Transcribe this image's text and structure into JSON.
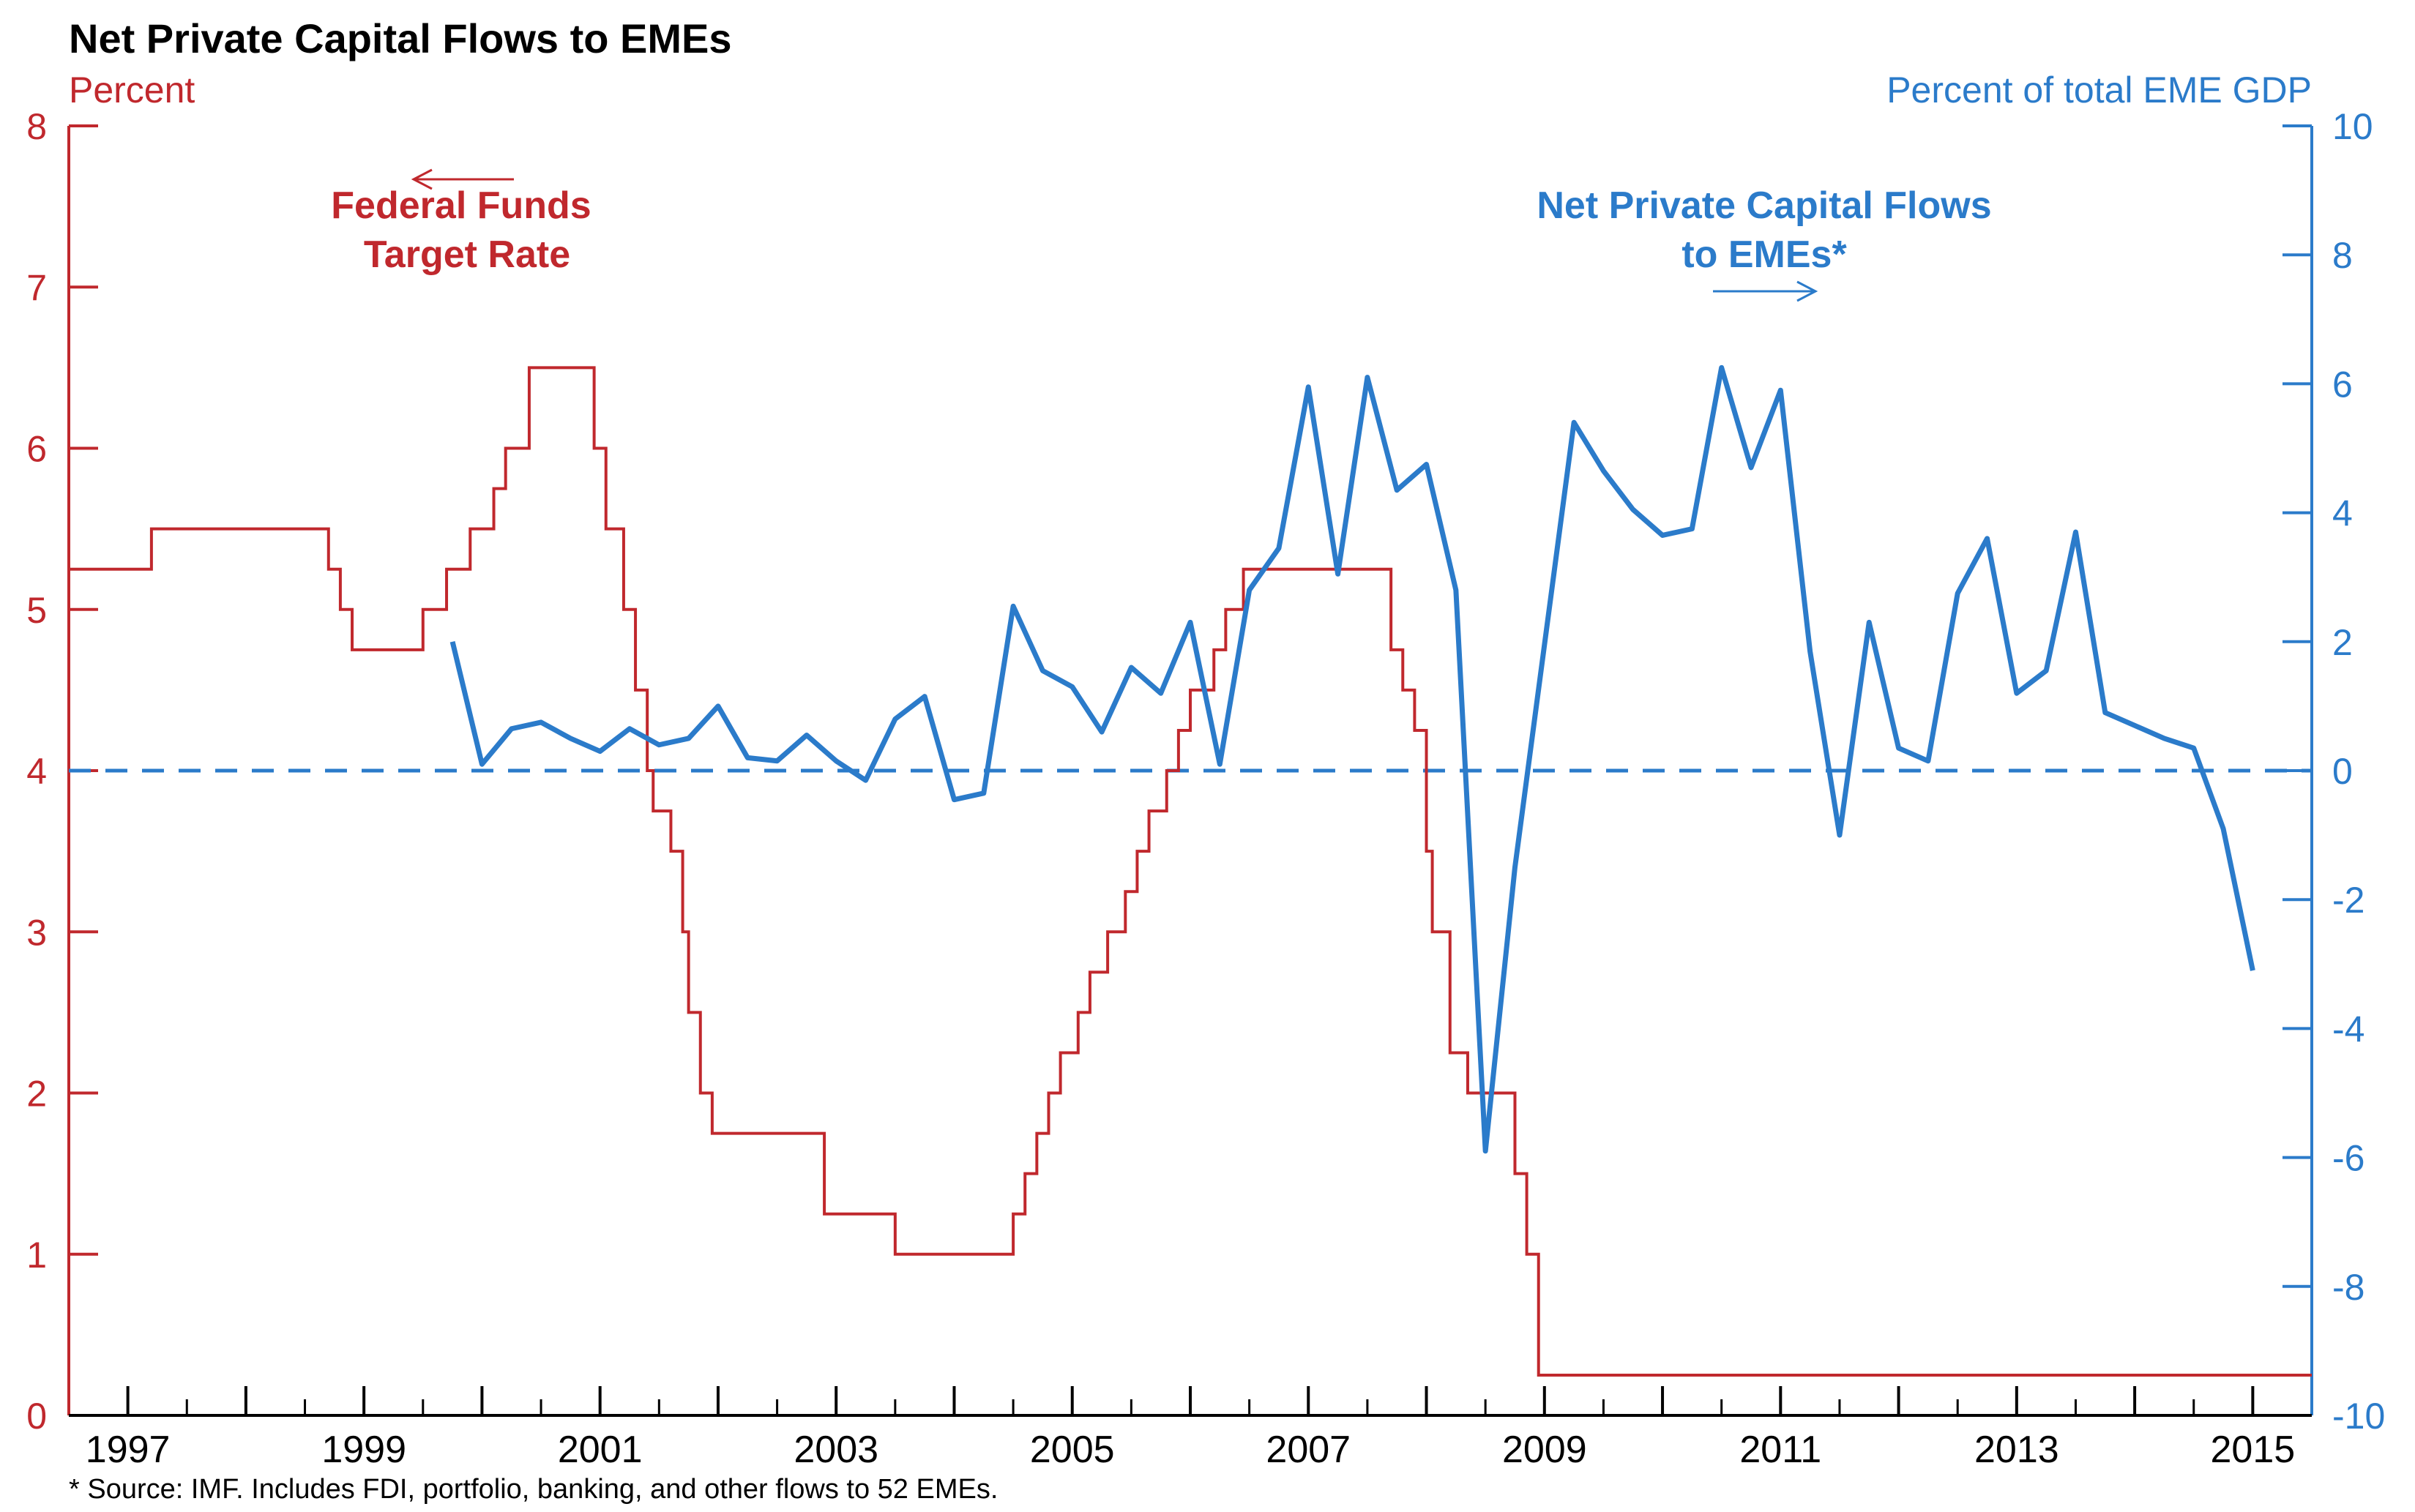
{
  "chart_data": {
    "type": "line",
    "title": "Net Private Capital Flows to EMEs",
    "left_axis": {
      "unit": "Percent",
      "ylim": [
        0,
        8
      ],
      "ticks": [
        0,
        1,
        2,
        3,
        4,
        5,
        6,
        7,
        8
      ],
      "color": "#c0282d"
    },
    "right_axis": {
      "unit": "Percent of total EME GDP",
      "ylim": [
        -10,
        10
      ],
      "ticks": [
        -10,
        -8,
        -6,
        -4,
        -2,
        0,
        2,
        4,
        6,
        8,
        10
      ],
      "color": "#2b7bca"
    },
    "x_axis": {
      "xlim": [
        1996.5,
        2015.5
      ],
      "tick_labels": [
        "1997",
        "1999",
        "2001",
        "2003",
        "2005",
        "2007",
        "2009",
        "2011",
        "2013",
        "2015"
      ],
      "tick_values": [
        1997,
        1999,
        2001,
        2003,
        2005,
        2007,
        2009,
        2011,
        2013,
        2015
      ]
    },
    "zero_line": {
      "axis": "right",
      "value": 0,
      "style": "dashed",
      "color": "#2b7bca"
    },
    "series": [
      {
        "name": "Federal Funds Target Rate",
        "axis": "left",
        "style": "step",
        "color": "#c0282d",
        "points": [
          [
            1996.5,
            5.25
          ],
          [
            1997.2,
            5.5
          ],
          [
            1998.7,
            5.25
          ],
          [
            1998.8,
            5.0
          ],
          [
            1998.9,
            4.75
          ],
          [
            1999.5,
            5.0
          ],
          [
            1999.7,
            5.25
          ],
          [
            1999.9,
            5.5
          ],
          [
            2000.1,
            5.75
          ],
          [
            2000.2,
            6.0
          ],
          [
            2000.4,
            6.5
          ],
          [
            2000.95,
            6.0
          ],
          [
            2001.05,
            5.5
          ],
          [
            2001.2,
            5.0
          ],
          [
            2001.3,
            4.5
          ],
          [
            2001.4,
            4.0
          ],
          [
            2001.45,
            3.75
          ],
          [
            2001.6,
            3.5
          ],
          [
            2001.7,
            3.0
          ],
          [
            2001.75,
            2.5
          ],
          [
            2001.85,
            2.0
          ],
          [
            2001.95,
            1.75
          ],
          [
            2002.9,
            1.25
          ],
          [
            2003.5,
            1.0
          ],
          [
            2004.5,
            1.25
          ],
          [
            2004.6,
            1.5
          ],
          [
            2004.7,
            1.75
          ],
          [
            2004.8,
            2.0
          ],
          [
            2004.9,
            2.25
          ],
          [
            2005.05,
            2.5
          ],
          [
            2005.15,
            2.75
          ],
          [
            2005.3,
            3.0
          ],
          [
            2005.45,
            3.25
          ],
          [
            2005.55,
            3.5
          ],
          [
            2005.65,
            3.75
          ],
          [
            2005.8,
            4.0
          ],
          [
            2005.9,
            4.25
          ],
          [
            2006.0,
            4.5
          ],
          [
            2006.2,
            4.75
          ],
          [
            2006.3,
            5.0
          ],
          [
            2006.45,
            5.25
          ],
          [
            2007.7,
            4.75
          ],
          [
            2007.8,
            4.5
          ],
          [
            2007.9,
            4.25
          ],
          [
            2008.0,
            3.5
          ],
          [
            2008.05,
            3.0
          ],
          [
            2008.2,
            2.25
          ],
          [
            2008.35,
            2.0
          ],
          [
            2008.75,
            1.5
          ],
          [
            2008.85,
            1.0
          ],
          [
            2008.95,
            0.25
          ],
          [
            2015.5,
            0.25
          ]
        ]
      },
      {
        "name": "Net Private Capital Flows to EMEs*",
        "axis": "right",
        "style": "line",
        "color": "#2b7bca",
        "points": [
          [
            1999.75,
            2.0
          ],
          [
            2000.0,
            0.1
          ],
          [
            2000.25,
            0.65
          ],
          [
            2000.5,
            0.75
          ],
          [
            2000.75,
            0.5
          ],
          [
            2001.0,
            0.3
          ],
          [
            2001.25,
            0.65
          ],
          [
            2001.5,
            0.4
          ],
          [
            2001.75,
            0.5
          ],
          [
            2002.0,
            1.0
          ],
          [
            2002.25,
            0.2
          ],
          [
            2002.5,
            0.15
          ],
          [
            2002.75,
            0.55
          ],
          [
            2003.0,
            0.15
          ],
          [
            2003.25,
            -0.15
          ],
          [
            2003.5,
            0.8
          ],
          [
            2003.75,
            1.15
          ],
          [
            2004.0,
            -0.45
          ],
          [
            2004.25,
            -0.35
          ],
          [
            2004.5,
            2.55
          ],
          [
            2004.75,
            1.55
          ],
          [
            2005.0,
            1.3
          ],
          [
            2005.25,
            0.6
          ],
          [
            2005.5,
            1.6
          ],
          [
            2005.75,
            1.2
          ],
          [
            2006.0,
            2.3
          ],
          [
            2006.25,
            0.1
          ],
          [
            2006.5,
            2.8
          ],
          [
            2006.75,
            3.45
          ],
          [
            2007.0,
            5.95
          ],
          [
            2007.25,
            3.05
          ],
          [
            2007.5,
            6.1
          ],
          [
            2007.75,
            4.35
          ],
          [
            2008.0,
            4.75
          ],
          [
            2008.25,
            2.8
          ],
          [
            2008.5,
            -5.9
          ],
          [
            2008.75,
            -1.5
          ],
          [
            2009.0,
            1.95
          ],
          [
            2009.25,
            5.4
          ],
          [
            2009.5,
            4.65
          ],
          [
            2009.75,
            4.05
          ],
          [
            2010.0,
            3.65
          ],
          [
            2010.25,
            3.75
          ],
          [
            2010.5,
            6.25
          ],
          [
            2010.75,
            4.7
          ],
          [
            2011.0,
            5.9
          ],
          [
            2011.25,
            1.85
          ],
          [
            2011.5,
            -1.0
          ],
          [
            2011.75,
            2.3
          ],
          [
            2012.0,
            0.35
          ],
          [
            2012.25,
            0.15
          ],
          [
            2012.5,
            2.75
          ],
          [
            2012.75,
            3.6
          ],
          [
            2013.0,
            1.2
          ],
          [
            2013.25,
            1.55
          ],
          [
            2013.5,
            3.7
          ],
          [
            2013.75,
            0.9
          ],
          [
            2014.0,
            0.7
          ],
          [
            2014.25,
            0.5
          ],
          [
            2014.5,
            0.35
          ],
          [
            2014.75,
            -0.9
          ],
          [
            2015.0,
            -3.1
          ]
        ]
      }
    ],
    "annotations": {
      "fed_funds_label": [
        "Federal Funds",
        "Target Rate"
      ],
      "flows_label": [
        "Net Private Capital Flows",
        "to EMEs*"
      ]
    },
    "source_note": "* Source: IMF. Includes FDI, portfolio, banking, and other flows to 52 EMEs."
  }
}
